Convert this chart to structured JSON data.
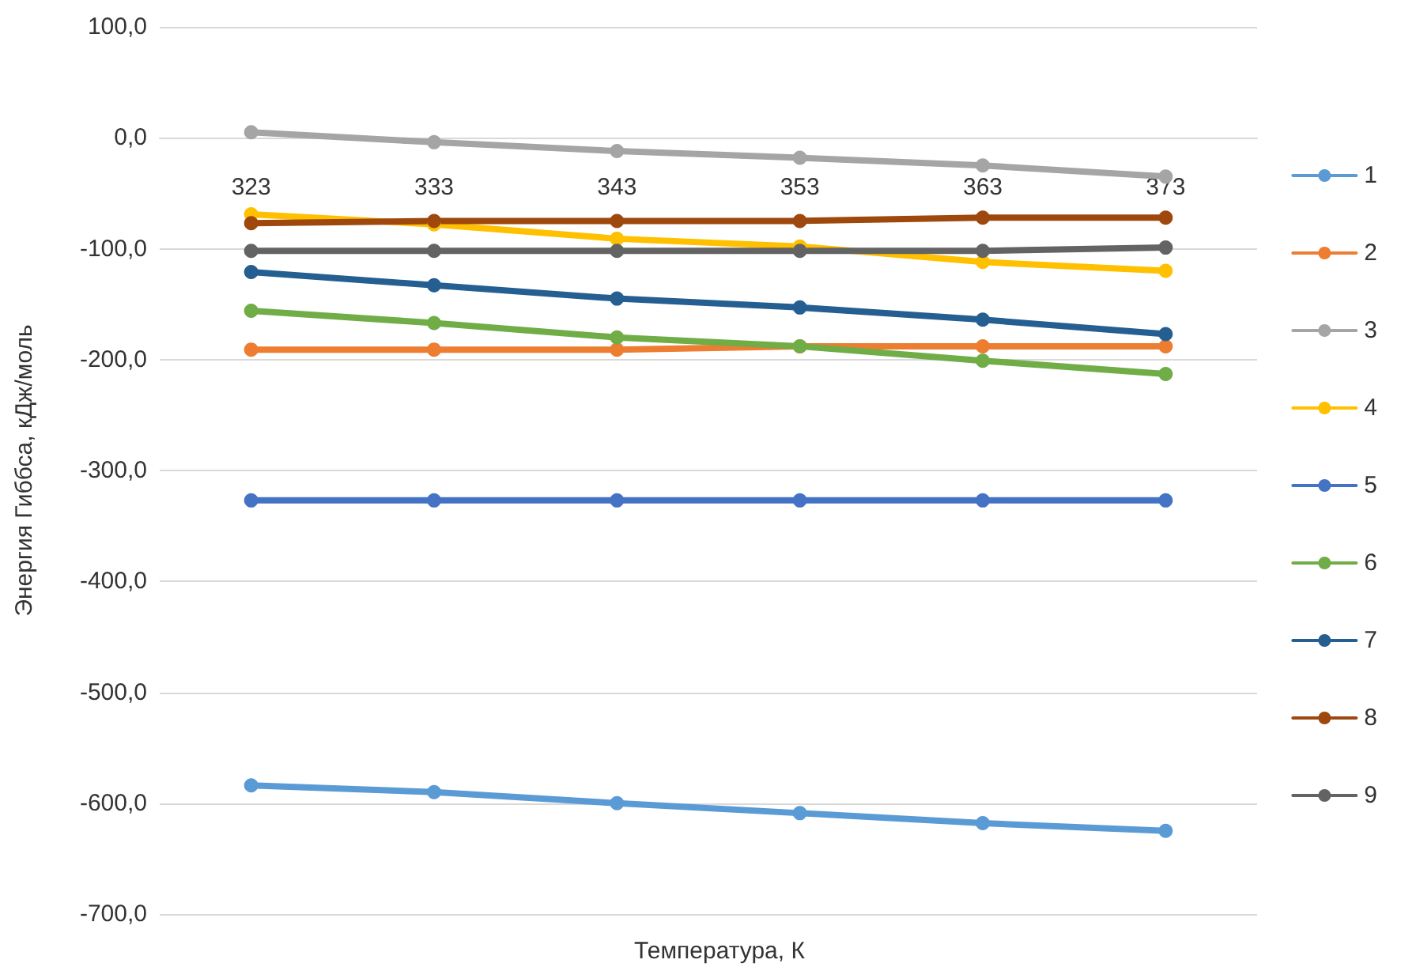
{
  "chart_data": {
    "type": "line",
    "xlabel": "Температура, К",
    "ylabel": "Энергия Гиббса, кДж/моль",
    "categories": [
      "323",
      "333",
      "343",
      "353",
      "363",
      "373"
    ],
    "series": [
      {
        "name": "1",
        "color": "#5b9bd5",
        "values": [
          -584,
          -590,
          -600,
          -609,
          -618,
          -625
        ]
      },
      {
        "name": "2",
        "color": "#ed7d31",
        "values": [
          -191,
          -191,
          -191,
          -188,
          -188,
          -188
        ]
      },
      {
        "name": "3",
        "color": "#a5a5a5",
        "values": [
          5,
          -4,
          -12,
          -18,
          -25,
          -35
        ]
      },
      {
        "name": "4",
        "color": "#ffc000",
        "values": [
          -69,
          -78,
          -91,
          -98,
          -112,
          -120
        ]
      },
      {
        "name": "5",
        "color": "#4472c4",
        "values": [
          -327,
          -327,
          -327,
          -327,
          -327,
          -327
        ]
      },
      {
        "name": "6",
        "color": "#70ad47",
        "values": [
          -156,
          -167,
          -180,
          -188,
          -201,
          -213
        ]
      },
      {
        "name": "7",
        "color": "#255e91",
        "values": [
          -121,
          -133,
          -145,
          -153,
          -164,
          -177
        ]
      },
      {
        "name": "8",
        "color": "#9e480e",
        "values": [
          -77,
          -75,
          -75,
          -75,
          -72,
          -72
        ]
      },
      {
        "name": "9",
        "color": "#636363",
        "values": [
          -102,
          -102,
          -102,
          -102,
          -102,
          -99
        ]
      }
    ],
    "ylim": [
      -700,
      100
    ],
    "yticks": [
      {
        "value": -700,
        "label": "-700,0"
      },
      {
        "value": -600,
        "label": "-600,0"
      },
      {
        "value": -500,
        "label": "-500,0"
      },
      {
        "value": -400,
        "label": "-400,0"
      },
      {
        "value": -300,
        "label": "-300,0"
      },
      {
        "value": -200,
        "label": "-200,0"
      },
      {
        "value": -100,
        "label": "-100,0"
      },
      {
        "value": 0,
        "label": "0,0"
      },
      {
        "value": 100,
        "label": "100,0"
      }
    ],
    "grid": "y",
    "legend": "right",
    "marker": "circle"
  }
}
